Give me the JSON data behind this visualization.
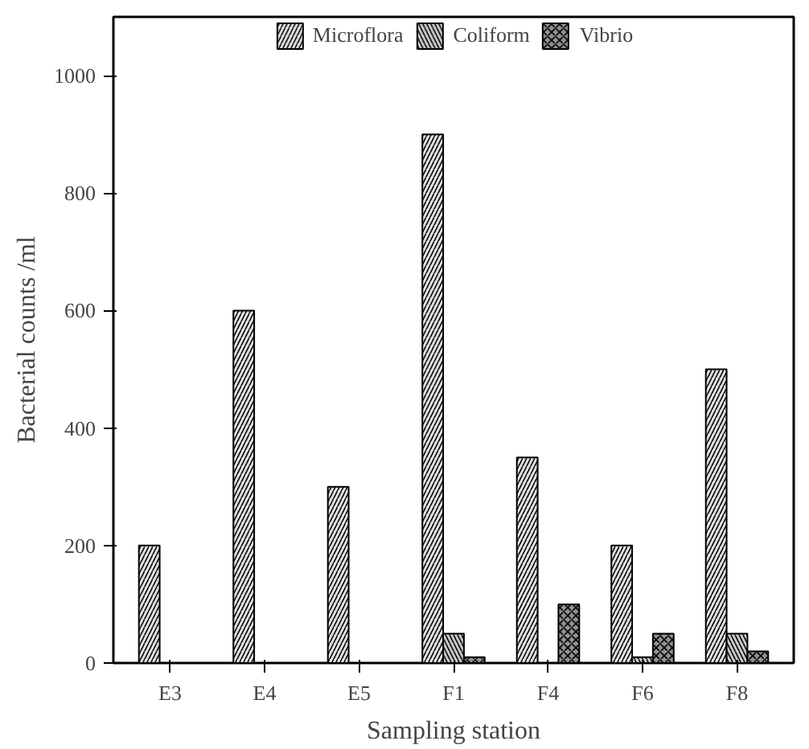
{
  "chart_data": {
    "type": "bar",
    "xlabel": "Sampling station",
    "ylabel": "Bacterial counts /ml",
    "categories": [
      "E3",
      "E4",
      "E5",
      "F1",
      "F4",
      "F6",
      "F8"
    ],
    "series": [
      {
        "name": "Microflora",
        "color": "#e0e0e0",
        "values": [
          200,
          600,
          300,
          900,
          350,
          200,
          500
        ]
      },
      {
        "name": "Coliform",
        "color": "#c8c8c8",
        "values": [
          null,
          null,
          null,
          50,
          null,
          10,
          50
        ]
      },
      {
        "name": "Vibrio",
        "color": "#909090",
        "values": [
          null,
          null,
          null,
          10,
          100,
          50,
          20
        ]
      }
    ],
    "ylim": [
      0,
      1100
    ],
    "yticks": [
      0,
      200,
      400,
      600,
      800,
      1000
    ],
    "grid": false,
    "legend": "top"
  }
}
